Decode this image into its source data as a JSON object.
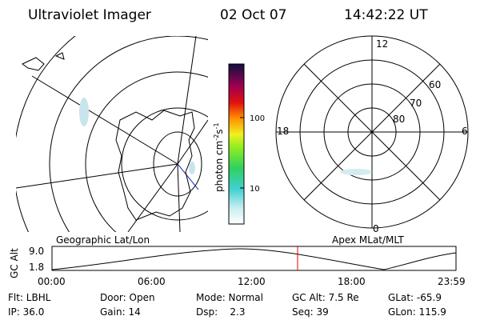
{
  "header": {
    "instrument": "Ultraviolet Imager",
    "date": "02 Oct 07",
    "time": "14:42:22 UT"
  },
  "colorbar": {
    "label": "photon cm",
    "exp1": "-2",
    "mid": "s",
    "exp2": "-1",
    "ticks": [
      "100",
      "10"
    ]
  },
  "polar_plot": {
    "hour_labels": [
      "12",
      "6",
      "0",
      "18"
    ],
    "lat_labels": [
      "60",
      "70",
      "80"
    ]
  },
  "map_captions": {
    "left": "Geographic Lat/Lon",
    "right": "Apex MLat/MLT"
  },
  "altitude_panel": {
    "axis_label": "GC Alt",
    "y_labels": [
      "9.0",
      "1.8"
    ],
    "time_labels": [
      "00:00",
      "06:00",
      "12:00",
      "18:00",
      "23:59"
    ]
  },
  "status": {
    "rows": [
      [
        "Flt: LBHL",
        "Door: Open",
        "Mode: Normal",
        "GC Alt: 7.5 Re",
        "GLat: -65.9"
      ],
      [
        "IP: 36.0",
        "Gain: 14",
        "Dsp:    2.3",
        "Seq: 39",
        "GLon: 115.9"
      ]
    ]
  }
}
